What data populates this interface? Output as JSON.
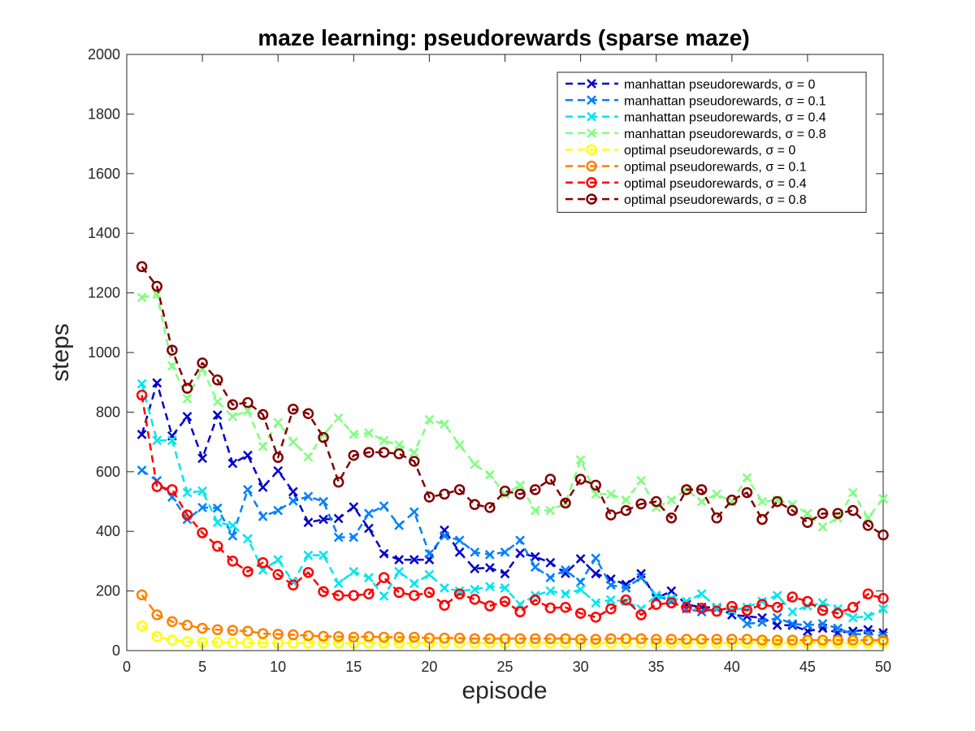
{
  "chart_data": {
    "type": "line",
    "title": "maze learning: pseudorewards (sparse maze)",
    "xlabel": "episode",
    "ylabel": "steps",
    "xlim": [
      0,
      50
    ],
    "ylim": [
      0,
      2000
    ],
    "xticks": [
      0,
      5,
      10,
      15,
      20,
      25,
      30,
      35,
      40,
      45,
      50
    ],
    "yticks": [
      0,
      200,
      400,
      600,
      800,
      1000,
      1200,
      1400,
      1600,
      1800,
      2000
    ],
    "grid": false,
    "legend_position": "top-right",
    "x": [
      1,
      2,
      3,
      4,
      5,
      6,
      7,
      8,
      9,
      10,
      11,
      12,
      13,
      14,
      15,
      16,
      17,
      18,
      19,
      20,
      21,
      22,
      23,
      24,
      25,
      26,
      27,
      28,
      29,
      30,
      31,
      32,
      33,
      34,
      35,
      36,
      37,
      38,
      39,
      40,
      41,
      42,
      43,
      44,
      45,
      46,
      47,
      48,
      49,
      50
    ],
    "series": [
      {
        "name": "manhattan pseudorewards, σ = 0",
        "color": "#0000cc",
        "marker": "x",
        "values": [
          725,
          898,
          720,
          785,
          645,
          790,
          628,
          655,
          548,
          603,
          533,
          430,
          440,
          443,
          482,
          410,
          325,
          305,
          305,
          305,
          404,
          330,
          275,
          278,
          258,
          327,
          315,
          295,
          259,
          308,
          258,
          240,
          222,
          258,
          175,
          200,
          155,
          145,
          145,
          120,
          115,
          110,
          85,
          85,
          65,
          75,
          60,
          65,
          70,
          60
        ]
      },
      {
        "name": "manhattan pseudorewards, σ = 0.1",
        "color": "#0080ff",
        "marker": "x",
        "values": [
          605,
          570,
          515,
          440,
          480,
          478,
          385,
          540,
          450,
          470,
          502,
          517,
          500,
          380,
          380,
          460,
          485,
          420,
          465,
          325,
          385,
          370,
          330,
          322,
          330,
          370,
          280,
          245,
          270,
          230,
          310,
          220,
          210,
          245,
          185,
          165,
          140,
          130,
          140,
          135,
          90,
          95,
          110,
          90,
          85,
          90,
          75,
          55,
          55,
          50
        ]
      },
      {
        "name": "manhattan pseudorewards, σ = 0.4",
        "color": "#00e5ee",
        "marker": "x",
        "values": [
          895,
          705,
          705,
          530,
          535,
          430,
          420,
          375,
          270,
          305,
          230,
          320,
          320,
          225,
          265,
          245,
          183,
          265,
          225,
          255,
          210,
          200,
          205,
          215,
          210,
          155,
          185,
          200,
          190,
          205,
          160,
          170,
          165,
          140,
          185,
          175,
          165,
          190,
          145,
          135,
          145,
          165,
          185,
          130,
          150,
          160,
          140,
          110,
          115,
          140
        ]
      },
      {
        "name": "manhattan pseudorewards, σ = 0.8",
        "color": "#80ff80",
        "marker": "x",
        "values": [
          1185,
          1195,
          955,
          845,
          945,
          835,
          785,
          805,
          685,
          765,
          700,
          650,
          725,
          780,
          725,
          730,
          705,
          690,
          665,
          775,
          760,
          690,
          625,
          590,
          525,
          555,
          470,
          470,
          495,
          640,
          525,
          525,
          505,
          570,
          480,
          505,
          540,
          500,
          525,
          500,
          580,
          500,
          505,
          490,
          460,
          415,
          445,
          530,
          445,
          510
        ]
      },
      {
        "name": "optimal pseudorewards, σ = 0",
        "color": "#ffff00",
        "marker": "o",
        "values": [
          83,
          47,
          35,
          30,
          28,
          28,
          27,
          26,
          26,
          25,
          25,
          25,
          25,
          25,
          25,
          25,
          25,
          25,
          25,
          25,
          25,
          25,
          25,
          25,
          25,
          25,
          25,
          25,
          25,
          25,
          25,
          25,
          25,
          25,
          25,
          25,
          25,
          25,
          25,
          25,
          25,
          25,
          25,
          25,
          25,
          25,
          25,
          25,
          25,
          25
        ]
      },
      {
        "name": "optimal pseudorewards, σ = 0.1",
        "color": "#ff8000",
        "marker": "o",
        "values": [
          187,
          120,
          97,
          85,
          75,
          70,
          68,
          65,
          57,
          55,
          53,
          50,
          48,
          47,
          45,
          47,
          45,
          45,
          45,
          42,
          42,
          42,
          40,
          40,
          40,
          40,
          40,
          40,
          40,
          38,
          38,
          40,
          40,
          40,
          38,
          38,
          38,
          38,
          38,
          38,
          38,
          35,
          35,
          35,
          35,
          35,
          35,
          35,
          35,
          35
        ]
      },
      {
        "name": "optimal pseudorewards, σ = 0.4",
        "color": "#ff0000",
        "marker": "o",
        "values": [
          857,
          550,
          540,
          455,
          395,
          350,
          300,
          265,
          295,
          255,
          220,
          262,
          198,
          185,
          185,
          190,
          245,
          195,
          185,
          195,
          152,
          190,
          172,
          150,
          165,
          130,
          170,
          143,
          145,
          125,
          112,
          140,
          170,
          120,
          155,
          160,
          145,
          142,
          132,
          148,
          135,
          155,
          145,
          180,
          165,
          135,
          125,
          145,
          190,
          175
        ]
      },
      {
        "name": "optimal pseudorewards, σ = 0.8",
        "color": "#800000",
        "marker": "o",
        "values": [
          1288,
          1222,
          1008,
          880,
          965,
          908,
          825,
          832,
          792,
          648,
          810,
          795,
          715,
          565,
          655,
          665,
          665,
          660,
          635,
          515,
          525,
          540,
          490,
          480,
          535,
          525,
          540,
          575,
          495,
          575,
          555,
          455,
          470,
          492,
          500,
          445,
          540,
          540,
          445,
          505,
          530,
          440,
          500,
          470,
          430,
          460,
          460,
          470,
          420,
          388
        ]
      }
    ]
  }
}
